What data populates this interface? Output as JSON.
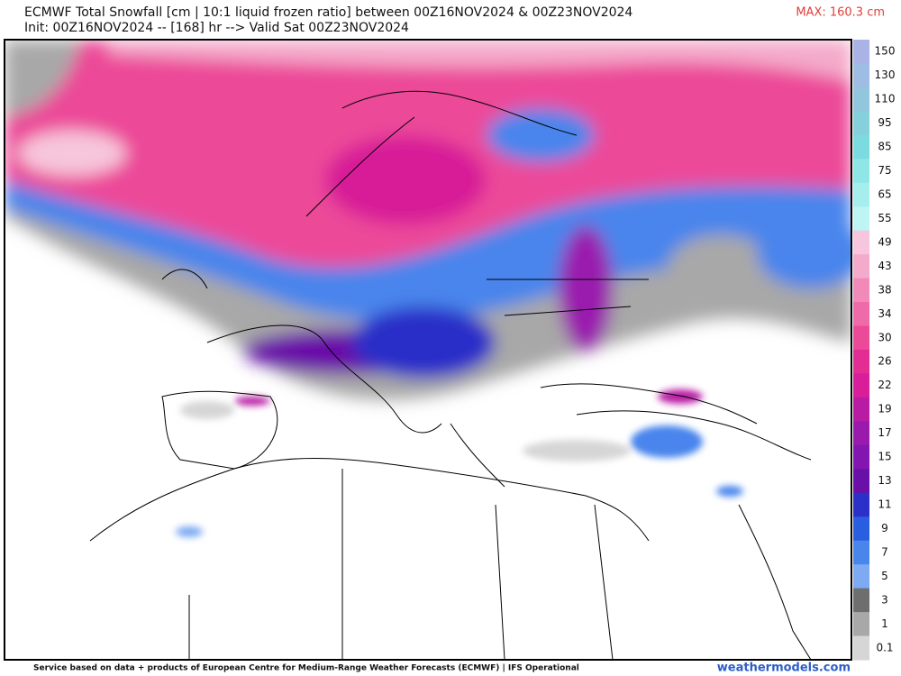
{
  "header": {
    "title": "ECMWF Total Snowfall [cm | 10:1 liquid frozen ratio] between 00Z16NOV2024 & 00Z23NOV2024",
    "subtitle": "Init: 00Z16NOV2024 -- [168] hr --> Valid Sat 00Z23NOV2024",
    "max_label": "MAX: 160.3 cm"
  },
  "colorbar": {
    "entries": [
      {
        "label": "150",
        "color": "#a9b3e6"
      },
      {
        "label": "130",
        "color": "#9fbde4"
      },
      {
        "label": "110",
        "color": "#92c6dc"
      },
      {
        "label": "95",
        "color": "#86d0dc"
      },
      {
        "label": "85",
        "color": "#7cdbe0"
      },
      {
        "label": "75",
        "color": "#8ee6e6"
      },
      {
        "label": "65",
        "color": "#a6eeee"
      },
      {
        "label": "55",
        "color": "#bff4f4"
      },
      {
        "label": "49",
        "color": "#f7c6dc"
      },
      {
        "label": "43",
        "color": "#f4aacb"
      },
      {
        "label": "38",
        "color": "#f28ab9"
      },
      {
        "label": "34",
        "color": "#ef6aa8"
      },
      {
        "label": "30",
        "color": "#ec4a99"
      },
      {
        "label": "26",
        "color": "#e42d93"
      },
      {
        "label": "22",
        "color": "#d81e98"
      },
      {
        "label": "19",
        "color": "#b81ca4"
      },
      {
        "label": "17",
        "color": "#9a1aae"
      },
      {
        "label": "15",
        "color": "#8316b0"
      },
      {
        "label": "13",
        "color": "#6a10a8"
      },
      {
        "label": "11",
        "color": "#2c2fc8"
      },
      {
        "label": "9",
        "color": "#2a5ee0"
      },
      {
        "label": "7",
        "color": "#4a85ec"
      },
      {
        "label": "5",
        "color": "#7daaf2"
      },
      {
        "label": "3",
        "color": "#6e6e6e"
      },
      {
        "label": "1",
        "color": "#a8a8a8"
      },
      {
        "label": "0.1",
        "color": "#d6d6d6"
      }
    ]
  },
  "footer": {
    "credit": "Service based on data + products of European Centre for Medium-Range Weather Forecasts (ECMWF) | IFS Operational",
    "site": "weathermodels.com"
  }
}
